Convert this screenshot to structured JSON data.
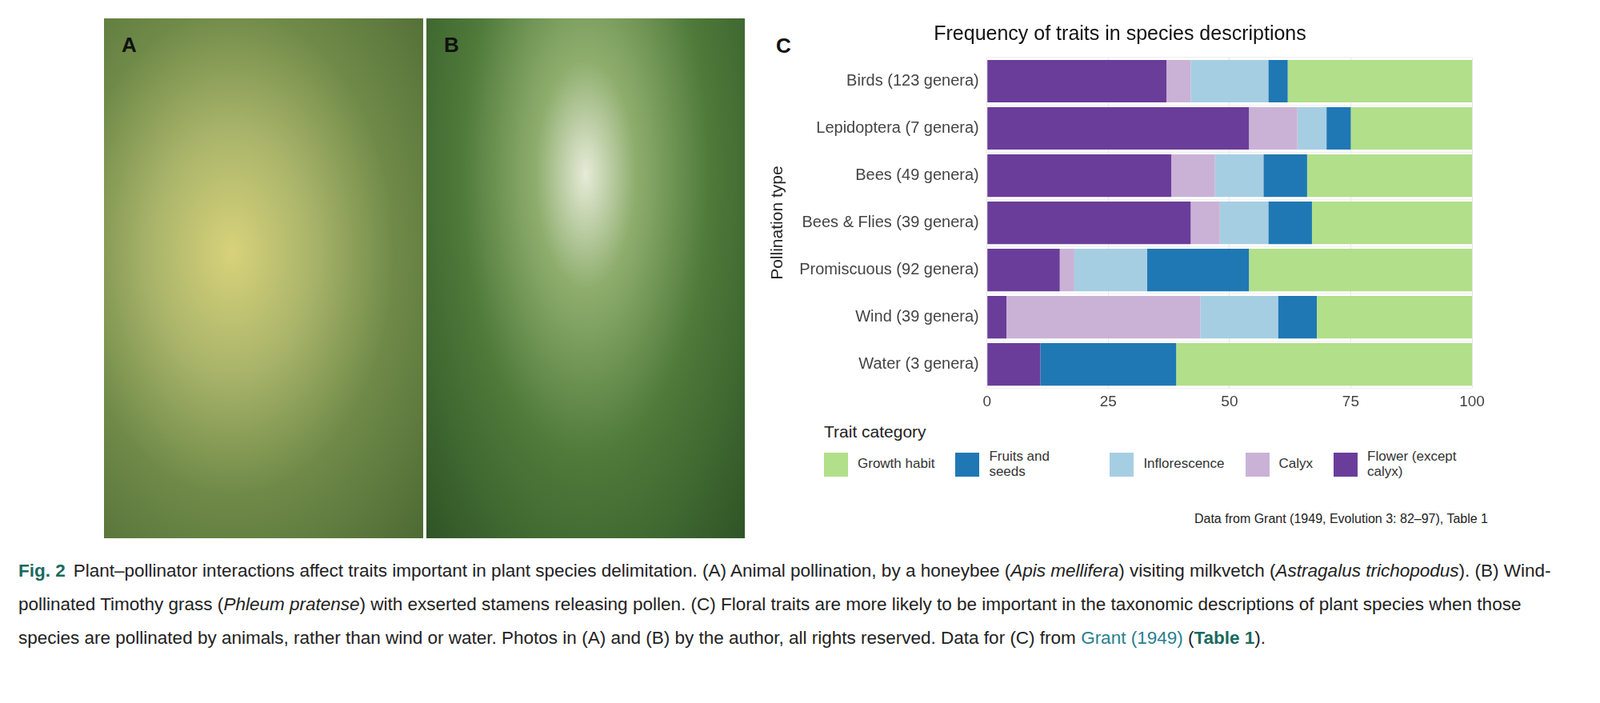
{
  "panels": [
    {
      "label": "A"
    },
    {
      "label": "B"
    }
  ],
  "chart_data": {
    "panel_label": "C",
    "type": "bar",
    "orientation": "horizontal",
    "stacked": true,
    "title": "Frequency of traits in species descriptions",
    "y_label": "Pollination type",
    "legend_title": "Trait category",
    "legend": "bottom",
    "source": "Data from Grant (1949, Evolution 3: 82–97), Table 1",
    "categories": [
      "Birds (123 genera)",
      "Lepidoptera (7 genera)",
      "Bees (49 genera)",
      "Bees & Flies (39 genera)",
      "Promiscuous (92 genera)",
      "Wind (39 genera)",
      "Water (3 genera)"
    ],
    "series": [
      {
        "name": "Flower (except calyx)",
        "color": "#6a3d9a",
        "values": [
          37,
          54,
          38,
          42,
          15,
          4,
          11
        ]
      },
      {
        "name": "Calyx",
        "color": "#cab2d6",
        "values": [
          5,
          10,
          9,
          6,
          3,
          40,
          0
        ]
      },
      {
        "name": "Inflorescence",
        "color": "#a6cee3",
        "values": [
          16,
          6,
          10,
          10,
          15,
          16,
          0
        ]
      },
      {
        "name": "Fruits and seeds",
        "color": "#1f78b4",
        "values": [
          4,
          5,
          9,
          9,
          21,
          8,
          28
        ]
      },
      {
        "name": "Growth habit",
        "color": "#b2df8a",
        "values": [
          38,
          25,
          34,
          33,
          46,
          32,
          61
        ]
      }
    ],
    "xlim": [
      0,
      100
    ],
    "xticks": [
      0,
      25,
      50,
      75,
      100
    ],
    "grid": true
  },
  "caption": {
    "label": "Fig. 2",
    "parts": [
      {
        "text": "Plant–pollinator interactions affect traits important in plant species delimitation. (A) Animal pollination, by a honeybee (",
        "style": "plain"
      },
      {
        "text": "Apis mellifera",
        "style": "italic"
      },
      {
        "text": ") visiting milkvetch (",
        "style": "plain"
      },
      {
        "text": "Astragalus trichopodus",
        "style": "italic"
      },
      {
        "text": "). (B) Wind-pollinated Timothy grass (",
        "style": "plain"
      },
      {
        "text": "Phleum pratense",
        "style": "italic"
      },
      {
        "text": ") with exserted stamens releasing pollen. (C) Floral traits are more likely to be important in the taxonomic descriptions of plant species when those species are pollinated by animals, rather than wind or water. Photos in (A) and (B) by the author, all rights reserved. Data for (C) from ",
        "style": "plain"
      },
      {
        "text": "Grant (1949)",
        "style": "link"
      },
      {
        "text": " (",
        "style": "plain"
      },
      {
        "text": "Table 1",
        "style": "boldlink"
      },
      {
        "text": ").",
        "style": "plain"
      }
    ]
  }
}
